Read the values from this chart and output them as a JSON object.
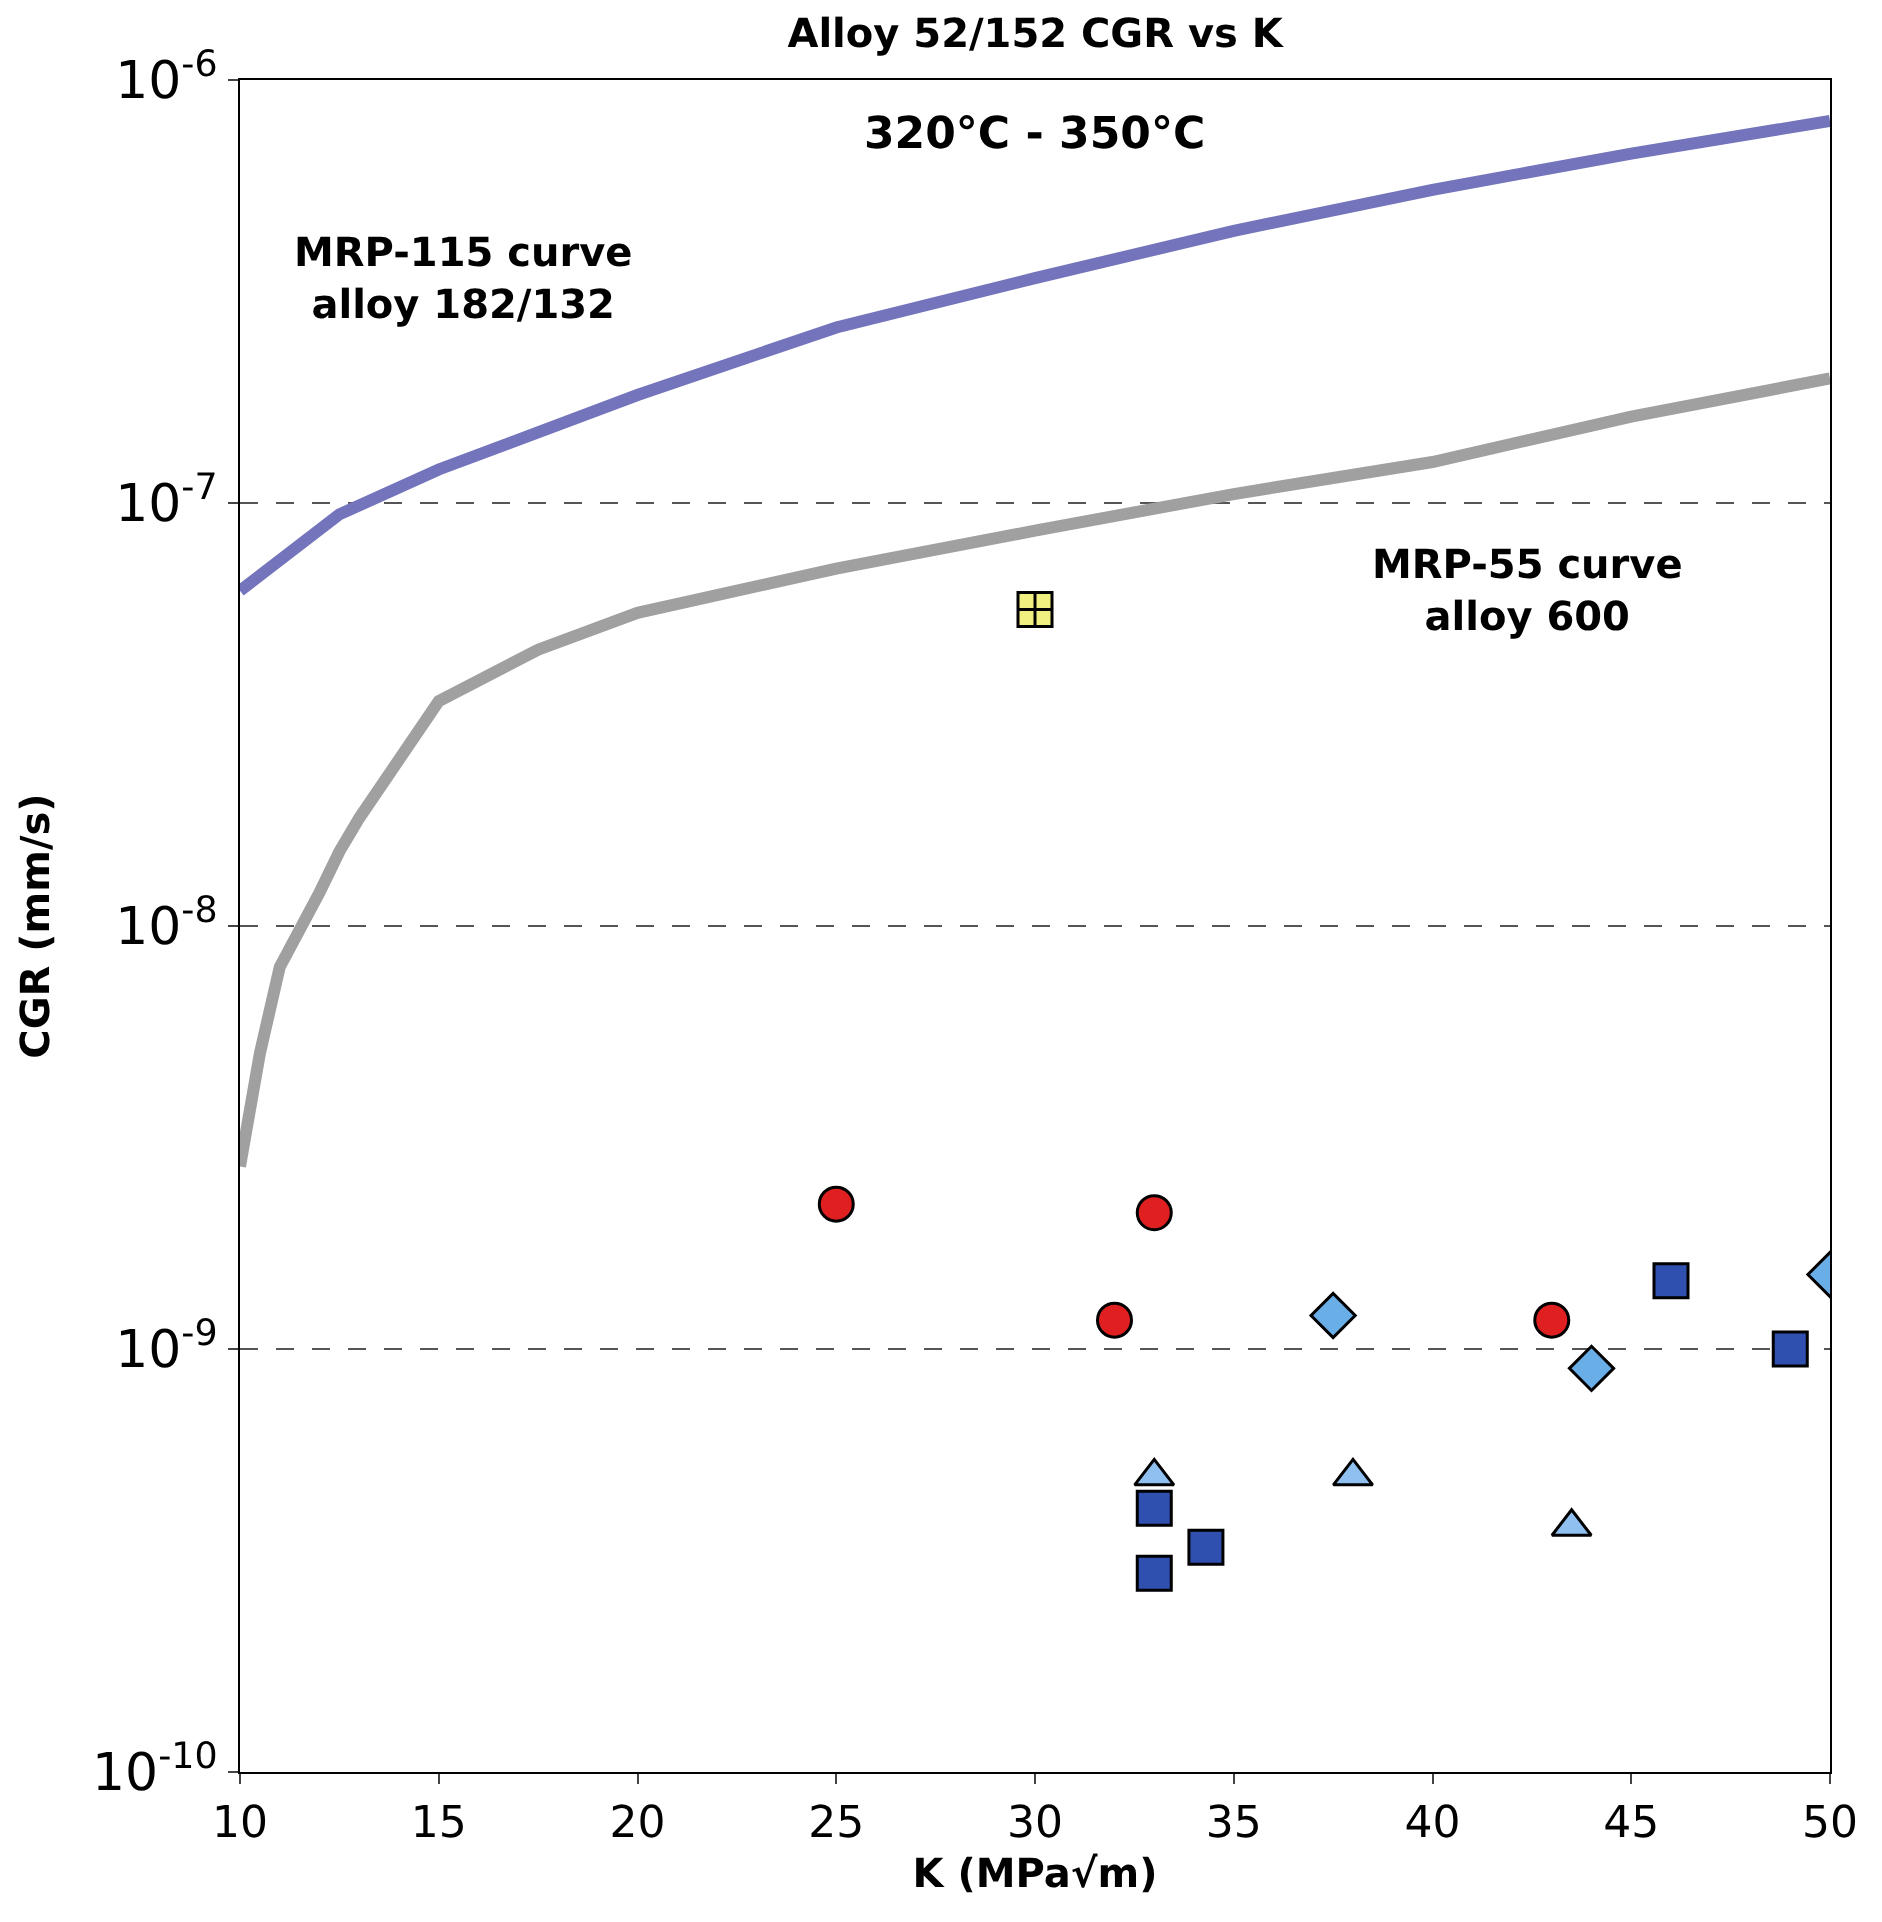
{
  "chart_data": {
    "type": "scatter",
    "title": "Alloy 52/152 CGR vs K",
    "xlabel": "K (MPa√m)",
    "ylabel": "CGR (mm/s)",
    "log": "y",
    "grid": "y",
    "xlim": [
      10,
      50
    ],
    "xticks": [
      10,
      15,
      20,
      25,
      30,
      35,
      40,
      45,
      50
    ],
    "ylim": [
      1e-10,
      1e-06
    ],
    "yticks": [
      {
        "value": 1e-10,
        "label": "10$^{-10}$"
      },
      {
        "value": 1e-09,
        "label": "10$^{-9}$"
      },
      {
        "value": 1e-08,
        "label": "10$^{-8}$"
      },
      {
        "value": 1e-07,
        "label": "10$^{-7}$"
      },
      {
        "value": 1e-06,
        "label": "10$^{-6}$"
      }
    ],
    "annotations": [
      "320°C - 350°C",
      "MRP-115 curve\nalloy 182/132",
      "MRP-55 curve\nalloy 600"
    ],
    "series": [
      {
        "type": "line",
        "color": "#7474bc",
        "x": [
          10,
          12.5,
          15,
          20,
          25,
          30,
          35,
          40,
          45,
          50
        ],
        "values": [
          6.2e-08,
          9.4e-08,
          1.2e-07,
          1.8e-07,
          2.6e-07,
          3.4e-07,
          4.4e-07,
          5.5e-07,
          6.7e-07,
          8e-07
        ]
      },
      {
        "type": "line",
        "color": "#a0a0a0",
        "x": [
          10,
          10.5,
          11,
          12,
          12.5,
          13,
          15,
          17.5,
          20,
          25,
          30,
          35,
          40,
          45,
          50
        ],
        "values": [
          2.7e-09,
          5e-09,
          8e-09,
          1.2e-08,
          1.5e-08,
          1.8e-08,
          3.4e-08,
          4.5e-08,
          5.5e-08,
          7e-08,
          8.6e-08,
          1.05e-07,
          1.25e-07,
          1.6e-07,
          1.97e-07
        ]
      },
      {
        "color": "#e02020",
        "marker": "circle",
        "x": [
          25,
          33,
          32,
          43
        ],
        "values": [
          2.2e-09,
          2.1e-09,
          1.17e-09,
          1.17e-09
        ]
      },
      {
        "color": "#6aaee8",
        "marker": "diamond",
        "x": [
          37.5,
          44,
          50
        ],
        "values": [
          1.2e-09,
          9e-10,
          1.5e-09
        ]
      },
      {
        "color": "#3050b0",
        "marker": "square",
        "x": [
          46,
          49,
          33,
          33,
          34.3
        ],
        "values": [
          1.45e-09,
          1e-09,
          4.2e-10,
          2.95e-10,
          3.4e-10
        ]
      },
      {
        "color": "#90c0f0",
        "marker": "triangle",
        "x": [
          33,
          38,
          43.5
        ],
        "values": [
          5e-10,
          5e-10,
          3.8e-10
        ]
      },
      {
        "color": "#f0f080",
        "marker": "cross",
        "x": [
          30
        ],
        "values": [
          5.6e-08
        ]
      }
    ]
  }
}
